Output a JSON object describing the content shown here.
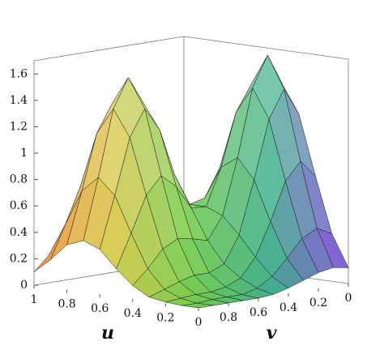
{
  "chart_data": {
    "type": "surface",
    "xlabel": "u",
    "ylabel": "v",
    "x": [
      0,
      0.1,
      0.2,
      0.3,
      0.4,
      0.5,
      0.6,
      0.7,
      0.8,
      0.9,
      1
    ],
    "y": [
      0,
      0.1,
      0.2,
      0.3,
      0.4,
      0.5,
      0.6,
      0.7,
      0.8,
      0.9,
      1
    ],
    "z": [
      [
        0.12,
        0.14,
        0.12,
        0.08,
        0.04,
        0.01,
        0,
        0,
        0,
        0,
        0
      ],
      [
        0.36,
        0.42,
        0.36,
        0.23,
        0.11,
        0.04,
        0.01,
        0.01,
        0.01,
        0,
        0
      ],
      [
        0.78,
        0.91,
        0.78,
        0.49,
        0.24,
        0.1,
        0.05,
        0.03,
        0.03,
        0.02,
        0.01
      ],
      [
        1.23,
        1.44,
        1.23,
        0.79,
        0.39,
        0.19,
        0.14,
        0.14,
        0.11,
        0.07,
        0.03
      ],
      [
        1.44,
        1.68,
        1.45,
        0.94,
        0.52,
        0.35,
        0.38,
        0.4,
        0.34,
        0.21,
        0.1
      ],
      [
        1.23,
        1.44,
        1.25,
        0.85,
        0.57,
        0.58,
        0.76,
        0.86,
        0.73,
        0.46,
        0.21
      ],
      [
        0.78,
        0.92,
        0.81,
        0.6,
        0.57,
        0.81,
        1.17,
        1.35,
        1.15,
        0.73,
        0.34
      ],
      [
        0.36,
        0.43,
        0.39,
        0.36,
        0.5,
        0.89,
        1.36,
        1.57,
        1.35,
        0.85,
        0.39
      ],
      [
        0.12,
        0.15,
        0.15,
        0.19,
        0.38,
        0.74,
        1.15,
        1.35,
        1.15,
        0.73,
        0.34
      ],
      [
        0.03,
        0.04,
        0.05,
        0.09,
        0.22,
        0.46,
        0.73,
        0.85,
        0.73,
        0.46,
        0.21
      ],
      [
        0.01,
        0.01,
        0.01,
        0.03,
        0.1,
        0.21,
        0.34,
        0.39,
        0.34,
        0.21,
        0.1
      ]
    ],
    "xlim": [
      0,
      1
    ],
    "ylim": [
      0,
      1
    ],
    "zlim": [
      0,
      1.7
    ],
    "xticks": [
      1,
      0.8,
      0.6,
      0.4,
      0.2,
      0
    ],
    "yticks": [
      0.8,
      0.6,
      0.4,
      0.2,
      0
    ],
    "zticks": [
      0,
      0.2,
      0.4,
      0.6,
      0.8,
      1,
      1.2,
      1.4,
      1.6
    ],
    "colors": [
      "#f08a3c",
      "#d8c848",
      "#74cc50",
      "#3fae8a",
      "#8a48e0"
    ]
  }
}
